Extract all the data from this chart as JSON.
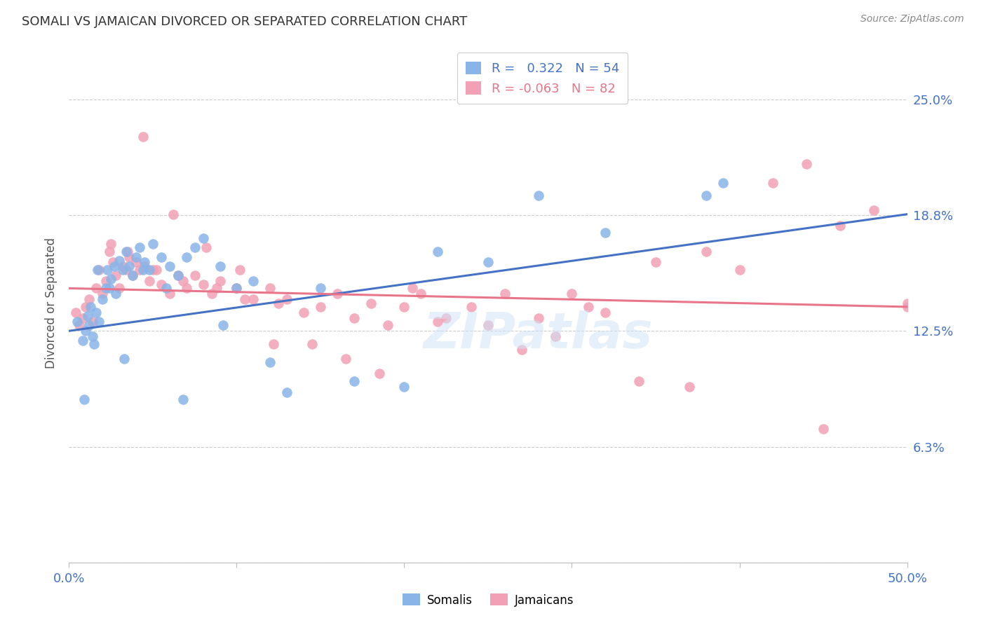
{
  "title": "SOMALI VS JAMAICAN DIVORCED OR SEPARATED CORRELATION CHART",
  "source": "Source: ZipAtlas.com",
  "ylabel": "Divorced or Separated",
  "r1": 0.322,
  "n1": 54,
  "r2": -0.063,
  "n2": 82,
  "xlim": [
    0.0,
    0.5
  ],
  "ylim": [
    0.0,
    0.28
  ],
  "ytick_vals": [
    0.0,
    0.0625,
    0.125,
    0.1875,
    0.25
  ],
  "ytick_labels": [
    "",
    "6.3%",
    "12.5%",
    "18.8%",
    "25.0%"
  ],
  "color_somali": "#89b4e8",
  "color_jamaican": "#f2a0b5",
  "color_blue_line": "#4472c4",
  "color_pink_line": "#e8758a",
  "background_color": "#ffffff",
  "somali_x": [
    0.005,
    0.008,
    0.01,
    0.011,
    0.012,
    0.013,
    0.014,
    0.015,
    0.016,
    0.018,
    0.02,
    0.022,
    0.023,
    0.025,
    0.027,
    0.028,
    0.03,
    0.032,
    0.034,
    0.036,
    0.038,
    0.04,
    0.042,
    0.045,
    0.048,
    0.05,
    0.055,
    0.06,
    0.065,
    0.07,
    0.075,
    0.08,
    0.09,
    0.1,
    0.11,
    0.12,
    0.13,
    0.15,
    0.17,
    0.2,
    0.22,
    0.25,
    0.28,
    0.32,
    0.38,
    0.009,
    0.017,
    0.024,
    0.033,
    0.044,
    0.058,
    0.068,
    0.092,
    0.39
  ],
  "somali_y": [
    0.13,
    0.12,
    0.125,
    0.133,
    0.128,
    0.138,
    0.122,
    0.118,
    0.135,
    0.13,
    0.142,
    0.148,
    0.158,
    0.153,
    0.16,
    0.145,
    0.163,
    0.158,
    0.168,
    0.16,
    0.155,
    0.165,
    0.17,
    0.162,
    0.158,
    0.172,
    0.165,
    0.16,
    0.155,
    0.165,
    0.17,
    0.175,
    0.16,
    0.148,
    0.152,
    0.108,
    0.092,
    0.148,
    0.098,
    0.095,
    0.168,
    0.162,
    0.198,
    0.178,
    0.198,
    0.088,
    0.158,
    0.148,
    0.11,
    0.158,
    0.148,
    0.088,
    0.128,
    0.205
  ],
  "jamaican_x": [
    0.004,
    0.006,
    0.008,
    0.01,
    0.012,
    0.014,
    0.016,
    0.018,
    0.02,
    0.022,
    0.024,
    0.026,
    0.028,
    0.03,
    0.032,
    0.034,
    0.036,
    0.038,
    0.04,
    0.042,
    0.045,
    0.048,
    0.05,
    0.055,
    0.06,
    0.065,
    0.07,
    0.075,
    0.08,
    0.085,
    0.09,
    0.1,
    0.11,
    0.12,
    0.13,
    0.14,
    0.15,
    0.16,
    0.17,
    0.18,
    0.19,
    0.2,
    0.21,
    0.22,
    0.24,
    0.26,
    0.28,
    0.3,
    0.32,
    0.35,
    0.38,
    0.4,
    0.42,
    0.44,
    0.46,
    0.48,
    0.5,
    0.025,
    0.035,
    0.052,
    0.068,
    0.088,
    0.105,
    0.125,
    0.145,
    0.165,
    0.185,
    0.205,
    0.225,
    0.25,
    0.27,
    0.29,
    0.31,
    0.34,
    0.37,
    0.45,
    0.5,
    0.044,
    0.062,
    0.082,
    0.102,
    0.122
  ],
  "jamaican_y": [
    0.135,
    0.128,
    0.132,
    0.138,
    0.142,
    0.13,
    0.148,
    0.158,
    0.145,
    0.152,
    0.168,
    0.162,
    0.155,
    0.148,
    0.16,
    0.158,
    0.165,
    0.155,
    0.162,
    0.158,
    0.16,
    0.152,
    0.158,
    0.15,
    0.145,
    0.155,
    0.148,
    0.155,
    0.15,
    0.145,
    0.152,
    0.148,
    0.142,
    0.148,
    0.142,
    0.135,
    0.138,
    0.145,
    0.132,
    0.14,
    0.128,
    0.138,
    0.145,
    0.13,
    0.138,
    0.145,
    0.132,
    0.145,
    0.135,
    0.162,
    0.168,
    0.158,
    0.205,
    0.215,
    0.182,
    0.19,
    0.138,
    0.172,
    0.168,
    0.158,
    0.152,
    0.148,
    0.142,
    0.14,
    0.118,
    0.11,
    0.102,
    0.148,
    0.132,
    0.128,
    0.115,
    0.122,
    0.138,
    0.098,
    0.095,
    0.072,
    0.14,
    0.23,
    0.188,
    0.17,
    0.158,
    0.118
  ],
  "blue_line_x": [
    0.0,
    0.5
  ],
  "blue_line_y": [
    0.125,
    0.188
  ],
  "pink_line_x": [
    0.0,
    0.5
  ],
  "pink_line_y": [
    0.148,
    0.138
  ]
}
